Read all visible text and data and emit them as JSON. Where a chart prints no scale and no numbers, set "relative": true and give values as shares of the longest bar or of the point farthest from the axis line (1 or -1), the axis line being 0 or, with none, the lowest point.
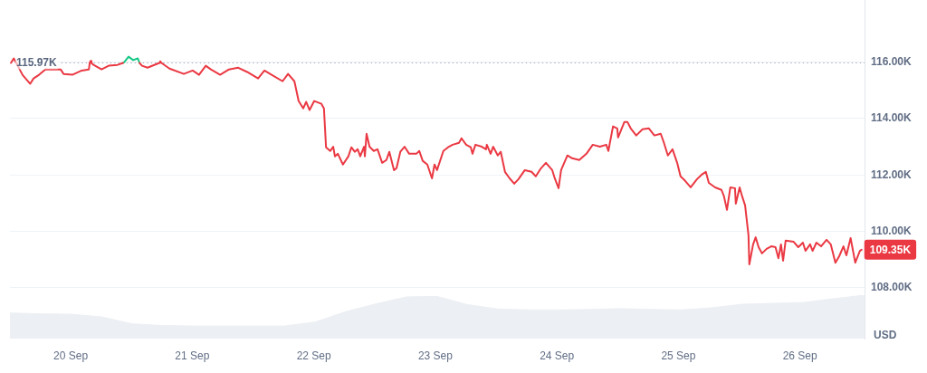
{
  "chart_data": [
    {
      "type": "line",
      "x": [
        "--09-19T12:12",
        "--09-19T12:45",
        "--09-19T13:15",
        "--09-19T14:30",
        "--09-19T16:00",
        "--09-19T16:40",
        "--09-19T17:45",
        "--09-19T19:00",
        "--09-19T22:00",
        "--09-19T22:35",
        "--09-20T00:20",
        "--09-20T02:10",
        "--09-20T03:35",
        "--09-20T03:45",
        "--09-20T03:55",
        "--09-20T04:05",
        "--09-20T04:30",
        "--09-20T06:05",
        "--09-20T07:30",
        "--09-20T09:15",
        "--09-20T10:20",
        "--09-20T10:35",
        "--09-20T11:25",
        "--09-20T12:20",
        "--09-20T13:15",
        "--09-20T13:35",
        "--09-20T14:05",
        "--09-20T15:10",
        "--09-20T17:30",
        "--09-20T17:40",
        "--09-20T17:55",
        "--09-20T19:30",
        "--09-20T22:20",
        "--09-21T00:05",
        "--09-21T01:20",
        "--09-21T02:40",
        "--09-21T03:40",
        "--09-21T05:30",
        "--09-21T07:15",
        "--09-21T09:05",
        "--09-21T10:50",
        "--09-21T13:00",
        "--09-21T14:15",
        "--09-21T15:40",
        "--09-21T17:50",
        "--09-21T18:55",
        "--09-21T20:10",
        "--09-21T21:00",
        "--09-21T21:55",
        "--09-21T22:30",
        "--09-21T23:10",
        "--09-22T00:05",
        "--09-22T01:30",
        "--09-22T02:00",
        "--09-22T02:25",
        "--09-22T03:15",
        "--09-22T03:50",
        "--09-22T04:10",
        "--09-22T04:45",
        "--09-22T05:45",
        "--09-22T06:50",
        "--09-22T07:25",
        "--09-22T08:05",
        "--09-22T08:40",
        "--09-22T09:10",
        "--09-22T09:55",
        "--09-22T10:05",
        "--09-22T10:25",
        "--09-22T11:00",
        "--09-22T11:50",
        "--09-22T12:35",
        "--09-22T13:30",
        "--09-22T14:20",
        "--09-22T14:55",
        "--09-22T15:50",
        "--09-22T16:20",
        "--09-22T17:05",
        "--09-22T17:55",
        "--09-22T18:50",
        "--09-22T20:15",
        "--09-22T20:50",
        "--09-22T21:30",
        "--09-22T22:25",
        "--09-22T23:20",
        "--09-22T23:50",
        "--09-23T00:20",
        "--09-23T01:35",
        "--09-23T02:30",
        "--09-23T03:25",
        "--09-23T04:40",
        "--09-23T05:10",
        "--09-23T06:05",
        "--09-23T07:00",
        "--09-23T07:20",
        "--09-23T07:55",
        "--09-23T09:10",
        "--09-23T10:00",
        "--09-23T10:10",
        "--09-23T10:55",
        "--09-23T11:25",
        "--09-23T12:20",
        "--09-23T12:55",
        "--09-23T13:45",
        "--09-23T14:40",
        "--09-23T15:35",
        "--09-23T16:25",
        "--09-23T17:40",
        "--09-23T19:00",
        "--09-23T19:50",
        "--09-23T20:45",
        "--09-23T21:50",
        "--09-23T23:05",
        "--09-23T23:35",
        "--09-24T00:20",
        "--09-24T00:50",
        "--09-24T02:05",
        "--09-24T03:00",
        "--09-24T04:25",
        "--09-24T05:50",
        "--09-24T07:05",
        "--09-24T08:30",
        "--09-24T09:45",
        "--09-24T10:10",
        "--09-24T11:05",
        "--09-24T11:55",
        "--09-24T12:05",
        "--09-24T13:20",
        "--09-24T13:55",
        "--09-24T14:35",
        "--09-24T15:40",
        "--09-24T16:55",
        "--09-24T18:10",
        "--09-24T19:15",
        "--09-24T20:30",
        "--09-24T21:05",
        "--09-24T21:55",
        "--09-24T22:50",
        "--09-24T23:45",
        "--09-25T00:25",
        "--09-25T01:20",
        "--09-25T02:25",
        "--09-25T03:40",
        "--09-25T04:35",
        "--09-25T05:25",
        "--09-25T06:00",
        "--09-25T07:15",
        "--09-25T08:30",
        "--09-25T09:00",
        "--09-25T09:35",
        "--09-25T10:15",
        "--09-25T11:10",
        "--09-25T11:20",
        "--09-25T12:05",
        "--09-25T12:35",
        "--09-25T13:10",
        "--09-25T13:50",
        "--09-25T14:00",
        "--09-25T14:45",
        "--09-25T15:15",
        "--09-25T15:50",
        "--09-25T16:30",
        "--09-25T17:25",
        "--09-25T18:20",
        "--09-25T19:10",
        "--09-25T19:45",
        "--09-25T20:15",
        "--09-25T20:40",
        "--09-25T21:10",
        "--09-25T22:45",
        "--09-25T23:40",
        "--09-26T00:35",
        "--09-26T01:05",
        "--09-26T02:00",
        "--09-26T02:30",
        "--09-26T03:15",
        "--09-26T04:10",
        "--09-26T05:15",
        "--09-26T06:05",
        "--09-26T07:00",
        "--09-26T07:45",
        "--09-26T08:35",
        "--09-26T09:10",
        "--09-26T10:00",
        "--09-26T10:55",
        "--09-26T11:50",
        "--09-26T12:10"
      ],
      "series": [
        {
          "color": "#ea3943",
          "values": [
            115.97,
            116.13,
            115.97,
            115.54,
            115.23,
            115.42,
            115.55,
            115.74,
            115.74,
            115.58,
            115.55,
            115.7,
            115.74,
            115.97,
            116.04,
            115.97,
            115.9,
            115.74,
            115.87,
            115.9,
            115.97,
            null,
            null,
            null,
            null,
            115.97,
            115.87,
            115.8,
            115.97,
            116.03,
            115.97,
            115.77,
            115.58,
            115.7,
            115.55,
            115.87,
            115.74,
            115.55,
            115.74,
            115.8,
            115.65,
            115.42,
            115.7,
            115.55,
            115.32,
            115.58,
            115.32,
            114.62,
            114.36,
            114.59,
            114.3,
            114.62,
            114.52,
            114.36,
            112.98,
            112.85,
            113.0,
            112.66,
            112.75,
            112.37,
            112.66,
            112.98,
            112.82,
            112.91,
            112.66,
            113.0,
            112.66,
            113.46,
            113.0,
            112.85,
            112.91,
            112.43,
            112.53,
            112.82,
            112.17,
            112.24,
            112.82,
            113.0,
            112.75,
            112.75,
            112.85,
            112.5,
            112.37,
            111.88,
            112.37,
            112.17,
            112.85,
            112.98,
            113.07,
            113.14,
            113.3,
            113.07,
            112.98,
            112.75,
            113.07,
            113.0,
            112.91,
            113.07,
            112.75,
            113.0,
            112.69,
            112.82,
            112.11,
            111.88,
            111.69,
            111.85,
            112.17,
            112.11,
            111.95,
            112.21,
            112.43,
            112.17,
            111.88,
            111.53,
            112.17,
            112.69,
            112.59,
            112.53,
            112.75,
            113.07,
            113.0,
            113.07,
            112.85,
            113.72,
            113.65,
            113.33,
            113.88,
            113.88,
            113.65,
            113.4,
            113.62,
            113.65,
            113.4,
            113.46,
            113.17,
            112.69,
            112.91,
            112.43,
            111.95,
            111.79,
            111.56,
            111.85,
            112.01,
            112.11,
            111.72,
            111.56,
            111.47,
            111.24,
            110.76,
            111.56,
            111.53,
            110.98,
            111.56,
            111.24,
            110.92,
            109.86,
            108.83,
            109.54,
            109.79,
            109.44,
            109.22,
            109.38,
            109.47,
            109.44,
            109.05,
            109.54,
            108.96,
            109.67,
            109.63,
            109.44,
            109.6,
            109.31,
            109.54,
            109.31,
            109.6,
            109.47,
            109.7,
            109.54,
            108.89,
            109.12,
            109.47,
            109.15,
            109.76,
            108.89,
            109.31,
            109.35
          ],
          "value_labels": [
            null,
            null,
            null,
            null,
            null,
            null,
            null,
            null,
            null,
            null,
            null,
            null,
            null,
            null,
            null,
            null,
            null,
            null,
            null,
            null,
            null,
            null,
            null,
            null,
            null,
            null,
            null,
            null,
            null,
            null,
            null,
            null,
            null,
            null,
            null,
            null,
            null,
            null,
            null,
            null,
            null,
            null,
            null,
            null,
            null,
            null,
            null,
            null,
            null,
            null,
            null,
            null,
            null,
            null,
            null,
            null,
            null,
            null,
            null,
            null,
            null,
            null,
            null,
            null,
            null,
            null,
            null,
            null,
            null,
            null,
            null,
            null,
            null,
            null,
            null,
            null,
            null,
            null,
            null,
            null,
            null,
            null,
            null,
            null,
            null,
            null,
            null,
            null,
            null,
            null,
            null,
            null,
            null,
            null,
            null,
            null,
            null,
            null,
            null,
            null,
            null,
            null,
            null,
            null,
            null,
            null,
            null,
            null,
            null,
            null,
            null,
            null,
            null,
            null,
            null,
            null,
            null,
            null,
            null,
            null,
            null,
            null,
            null,
            null,
            null,
            null,
            null,
            null,
            null,
            null,
            null,
            null,
            null,
            null,
            null,
            null,
            null,
            null,
            null,
            null,
            null,
            null,
            null,
            null,
            null,
            null,
            null,
            null,
            null,
            null,
            null,
            null,
            null,
            null,
            null,
            null,
            null,
            null,
            null,
            null,
            null,
            null,
            null,
            null,
            null,
            null,
            null,
            null,
            null,
            null,
            null,
            null,
            null,
            null,
            null,
            null,
            null,
            null,
            null,
            null,
            null,
            null,
            null,
            null,
            null,
            "109.35K"
          ]
        },
        {
          "color": "#16c784",
          "values": [
            null,
            null,
            null,
            null,
            null,
            null,
            null,
            null,
            null,
            null,
            null,
            null,
            null,
            null,
            null,
            null,
            null,
            null,
            null,
            null,
            115.97,
            116.0,
            116.19,
            116.07,
            116.13,
            115.97,
            null,
            null,
            null,
            null,
            null,
            null,
            null,
            null,
            null,
            null,
            null,
            null,
            null,
            null,
            null,
            null,
            null,
            null,
            null,
            null,
            null,
            null,
            null,
            null,
            null,
            null,
            null,
            null,
            null,
            null,
            null,
            null,
            null,
            null,
            null,
            null,
            null,
            null,
            null,
            null,
            null,
            null,
            null,
            null,
            null,
            null,
            null,
            null,
            null,
            null,
            null,
            null,
            null,
            null,
            null,
            null,
            null,
            null,
            null,
            null,
            null,
            null,
            null,
            null,
            null,
            null,
            null,
            null,
            null,
            null,
            null,
            null,
            null,
            null,
            null,
            null,
            null,
            null,
            null,
            null,
            null,
            null,
            null,
            null,
            null,
            null,
            null,
            null,
            null,
            null,
            null,
            null,
            null,
            null,
            null,
            null,
            null,
            null,
            null,
            null,
            null,
            null,
            null,
            null,
            null,
            null,
            null,
            null,
            null,
            null,
            null,
            null,
            null,
            null,
            null,
            null,
            null,
            null,
            null,
            null,
            null,
            null,
            null,
            null,
            null,
            null,
            null,
            null,
            null,
            null,
            null,
            null,
            null,
            null,
            null,
            null,
            null,
            null,
            null,
            null,
            null,
            null,
            null,
            null,
            null,
            null,
            null,
            null,
            null,
            null,
            null,
            null,
            null,
            null,
            null,
            null,
            null,
            null,
            null,
            null
          ]
        }
      ],
      "xlim": [
        "--09-19T12:00",
        "--09-26T12:45"
      ],
      "xticks": [
        {
          "value": "--09-20",
          "label": "20 Sep"
        },
        {
          "value": "--09-21",
          "label": "21 Sep"
        },
        {
          "value": "--09-22",
          "label": "22 Sep"
        },
        {
          "value": "--09-23",
          "label": "23 Sep"
        },
        {
          "value": "--09-24",
          "label": "24 Sep"
        },
        {
          "value": "--09-25",
          "label": "25 Sep"
        },
        {
          "value": "--09-26",
          "label": "26 Sep"
        }
      ],
      "ylim": [
        106.2,
        118.2
      ],
      "yticks": [
        {
          "value": 108,
          "label": "108.00K"
        },
        {
          "value": 110,
          "label": "110.00K"
        },
        {
          "value": 112,
          "label": "112.00K"
        },
        {
          "value": 114,
          "label": "114.00K"
        },
        {
          "value": 116,
          "label": "116.00K"
        }
      ],
      "ylabel": "USD",
      "grid": "y",
      "ref_lines": [
        {
          "axis": "y",
          "value": 115.97,
          "label": "115.97K",
          "line_style": "dotted",
          "color": "#a6b0c3"
        }
      ]
    },
    {
      "type": "area",
      "relative": true,
      "tick_labels": false,
      "categories": [
        null,
        null,
        null,
        null,
        null,
        null,
        null,
        null,
        null,
        null,
        null,
        null,
        null,
        null,
        null,
        null,
        null,
        null,
        null,
        null,
        null,
        null,
        null,
        null,
        null,
        null,
        null,
        null,
        null
      ],
      "series": [
        {
          "color": "#eceff3",
          "values": [
            0.59,
            0.57,
            0.56,
            0.5,
            0.34,
            0.3,
            0.29,
            0.29,
            0.29,
            0.29,
            0.38,
            0.62,
            0.8,
            0.96,
            0.97,
            0.78,
            0.68,
            0.66,
            0.66,
            0.67,
            0.69,
            0.67,
            0.66,
            0.71,
            0.79,
            0.81,
            0.83,
            0.92,
            1
          ]
        }
      ]
    }
  ]
}
